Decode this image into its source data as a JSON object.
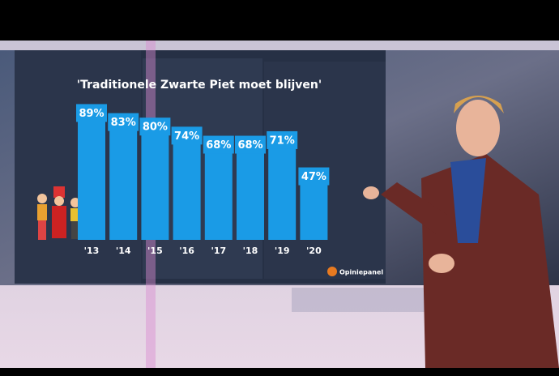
{
  "chart_data": {
    "type": "bar",
    "title": "'Traditionele Zwarte Piet moet blijven'",
    "categories": [
      "'13",
      "'14",
      "'15",
      "'16",
      "'17",
      "'18",
      "'19",
      "'20"
    ],
    "values": [
      89,
      83,
      80,
      74,
      68,
      68,
      71,
      47
    ],
    "value_labels": [
      "89%",
      "83%",
      "80%",
      "74%",
      "68%",
      "68%",
      "71%",
      "47%"
    ],
    "color": "#1a9be6",
    "source": "Opiniepanel"
  }
}
